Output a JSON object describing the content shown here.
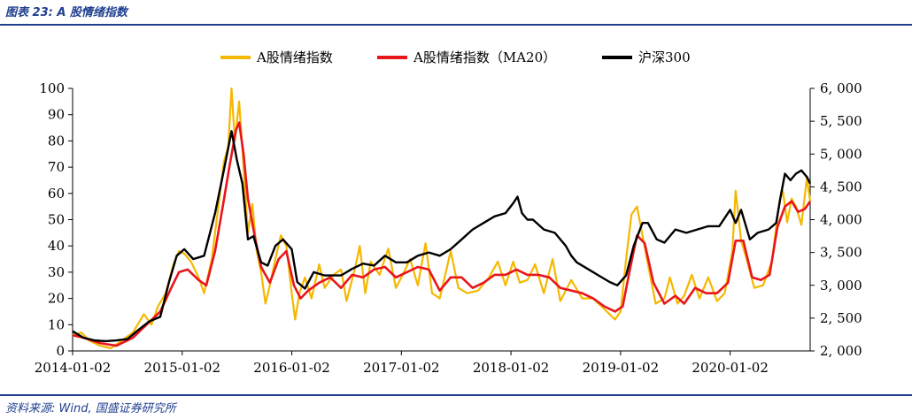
{
  "figure": {
    "title": "图表 23:  A 股情绪指数",
    "source": "资料来源:  Wind,  国盛证券研究所"
  },
  "chart_data": {
    "type": "line",
    "title": "图表 23:  A 股情绪指数",
    "x_ticks": [
      "2014-01-02",
      "2015-01-02",
      "2016-01-02",
      "2017-01-02",
      "2018-01-02",
      "2019-01-02",
      "2020-01-02"
    ],
    "x_range": [
      2014.0,
      2020.73
    ],
    "y_left": {
      "ticks": [
        "0",
        "10",
        "20",
        "30",
        "40",
        "50",
        "60",
        "70",
        "80",
        "90",
        "100"
      ],
      "range": [
        0,
        100
      ],
      "label": ""
    },
    "y_right": {
      "ticks": [
        "2, 000",
        "2, 500",
        "3, 000",
        "3, 500",
        "4, 000",
        "4, 500",
        "5, 000",
        "5, 500",
        "6, 000"
      ],
      "range": [
        2000,
        6000
      ],
      "label": ""
    },
    "legend": {
      "position": "top-center"
    },
    "grid": false,
    "series": [
      {
        "name": "A股情绪指数",
        "axis": "left",
        "color": "#f5b800",
        "points": [
          [
            2014.0,
            6
          ],
          [
            2014.08,
            7
          ],
          [
            2014.15,
            4
          ],
          [
            2014.25,
            2
          ],
          [
            2014.35,
            1
          ],
          [
            2014.45,
            4
          ],
          [
            2014.55,
            7
          ],
          [
            2014.65,
            14
          ],
          [
            2014.72,
            10
          ],
          [
            2014.78,
            17
          ],
          [
            2014.85,
            22
          ],
          [
            2014.92,
            33
          ],
          [
            2014.97,
            38
          ],
          [
            2015.02,
            37
          ],
          [
            2015.08,
            34
          ],
          [
            2015.15,
            28
          ],
          [
            2015.2,
            22
          ],
          [
            2015.27,
            35
          ],
          [
            2015.33,
            55
          ],
          [
            2015.38,
            72
          ],
          [
            2015.42,
            78
          ],
          [
            2015.45,
            100
          ],
          [
            2015.48,
            80
          ],
          [
            2015.52,
            95
          ],
          [
            2015.56,
            70
          ],
          [
            2015.6,
            45
          ],
          [
            2015.64,
            56
          ],
          [
            2015.68,
            38
          ],
          [
            2015.72,
            30
          ],
          [
            2015.76,
            18
          ],
          [
            2015.8,
            25
          ],
          [
            2015.85,
            35
          ],
          [
            2015.9,
            44
          ],
          [
            2015.95,
            40
          ],
          [
            2016.0,
            22
          ],
          [
            2016.03,
            12
          ],
          [
            2016.07,
            22
          ],
          [
            2016.12,
            28
          ],
          [
            2016.18,
            20
          ],
          [
            2016.25,
            33
          ],
          [
            2016.3,
            24
          ],
          [
            2016.38,
            29
          ],
          [
            2016.45,
            31
          ],
          [
            2016.5,
            19
          ],
          [
            2016.58,
            32
          ],
          [
            2016.62,
            40
          ],
          [
            2016.67,
            22
          ],
          [
            2016.72,
            34
          ],
          [
            2016.8,
            29
          ],
          [
            2016.88,
            39
          ],
          [
            2016.95,
            24
          ],
          [
            2017.0,
            28
          ],
          [
            2017.08,
            35
          ],
          [
            2017.15,
            25
          ],
          [
            2017.22,
            41
          ],
          [
            2017.28,
            22
          ],
          [
            2017.35,
            20
          ],
          [
            2017.45,
            38
          ],
          [
            2017.52,
            24
          ],
          [
            2017.6,
            22
          ],
          [
            2017.7,
            23
          ],
          [
            2017.8,
            28
          ],
          [
            2017.88,
            34
          ],
          [
            2017.95,
            25
          ],
          [
            2018.02,
            34
          ],
          [
            2018.08,
            26
          ],
          [
            2018.15,
            27
          ],
          [
            2018.22,
            33
          ],
          [
            2018.3,
            22
          ],
          [
            2018.38,
            35
          ],
          [
            2018.45,
            19
          ],
          [
            2018.55,
            27
          ],
          [
            2018.65,
            20
          ],
          [
            2018.75,
            20
          ],
          [
            2018.85,
            16
          ],
          [
            2018.95,
            12
          ],
          [
            2019.0,
            15
          ],
          [
            2019.05,
            35
          ],
          [
            2019.1,
            52
          ],
          [
            2019.15,
            55
          ],
          [
            2019.2,
            44
          ],
          [
            2019.25,
            33
          ],
          [
            2019.32,
            18
          ],
          [
            2019.4,
            20
          ],
          [
            2019.45,
            28
          ],
          [
            2019.52,
            18
          ],
          [
            2019.58,
            21
          ],
          [
            2019.65,
            29
          ],
          [
            2019.72,
            20
          ],
          [
            2019.8,
            28
          ],
          [
            2019.88,
            19
          ],
          [
            2019.95,
            22
          ],
          [
            2020.02,
            38
          ],
          [
            2020.05,
            61
          ],
          [
            2020.1,
            42
          ],
          [
            2020.15,
            35
          ],
          [
            2020.22,
            24
          ],
          [
            2020.3,
            25
          ],
          [
            2020.38,
            34
          ],
          [
            2020.45,
            57
          ],
          [
            2020.48,
            61
          ],
          [
            2020.52,
            49
          ],
          [
            2020.56,
            58
          ],
          [
            2020.6,
            55
          ],
          [
            2020.65,
            48
          ],
          [
            2020.7,
            66
          ],
          [
            2020.73,
            57
          ]
        ]
      },
      {
        "name": "A股情绪指数（MA20）",
        "axis": "left",
        "color": "#e8161b",
        "points": [
          [
            2014.0,
            6
          ],
          [
            2014.1,
            5
          ],
          [
            2014.25,
            3
          ],
          [
            2014.4,
            2
          ],
          [
            2014.55,
            5
          ],
          [
            2014.7,
            11
          ],
          [
            2014.8,
            15
          ],
          [
            2014.9,
            24
          ],
          [
            2014.97,
            30
          ],
          [
            2015.05,
            31
          ],
          [
            2015.15,
            27
          ],
          [
            2015.22,
            25
          ],
          [
            2015.3,
            38
          ],
          [
            2015.37,
            55
          ],
          [
            2015.43,
            70
          ],
          [
            2015.49,
            84
          ],
          [
            2015.52,
            87
          ],
          [
            2015.56,
            75
          ],
          [
            2015.6,
            58
          ],
          [
            2015.66,
            44
          ],
          [
            2015.72,
            32
          ],
          [
            2015.8,
            26
          ],
          [
            2015.88,
            35
          ],
          [
            2015.95,
            38
          ],
          [
            2016.02,
            25
          ],
          [
            2016.08,
            20
          ],
          [
            2016.15,
            23
          ],
          [
            2016.25,
            26
          ],
          [
            2016.35,
            28
          ],
          [
            2016.45,
            24
          ],
          [
            2016.55,
            29
          ],
          [
            2016.65,
            28
          ],
          [
            2016.75,
            31
          ],
          [
            2016.85,
            32
          ],
          [
            2016.95,
            28
          ],
          [
            2017.05,
            30
          ],
          [
            2017.15,
            32
          ],
          [
            2017.25,
            31
          ],
          [
            2017.35,
            23
          ],
          [
            2017.45,
            28
          ],
          [
            2017.55,
            28
          ],
          [
            2017.65,
            24
          ],
          [
            2017.75,
            26
          ],
          [
            2017.85,
            29
          ],
          [
            2017.95,
            29
          ],
          [
            2018.05,
            31
          ],
          [
            2018.15,
            29
          ],
          [
            2018.25,
            29
          ],
          [
            2018.35,
            28
          ],
          [
            2018.45,
            24
          ],
          [
            2018.55,
            23
          ],
          [
            2018.65,
            22
          ],
          [
            2018.75,
            20
          ],
          [
            2018.85,
            17
          ],
          [
            2018.95,
            15
          ],
          [
            2019.02,
            17
          ],
          [
            2019.08,
            30
          ],
          [
            2019.15,
            44
          ],
          [
            2019.22,
            41
          ],
          [
            2019.3,
            26
          ],
          [
            2019.4,
            18
          ],
          [
            2019.5,
            21
          ],
          [
            2019.58,
            18
          ],
          [
            2019.68,
            24
          ],
          [
            2019.78,
            22
          ],
          [
            2019.88,
            22
          ],
          [
            2019.98,
            26
          ],
          [
            2020.05,
            42
          ],
          [
            2020.12,
            42
          ],
          [
            2020.2,
            28
          ],
          [
            2020.28,
            27
          ],
          [
            2020.36,
            29
          ],
          [
            2020.43,
            47
          ],
          [
            2020.5,
            55
          ],
          [
            2020.56,
            57
          ],
          [
            2020.62,
            53
          ],
          [
            2020.68,
            54
          ],
          [
            2020.73,
            57
          ]
        ]
      },
      {
        "name": "沪深300",
        "axis": "right",
        "color": "#000000",
        "points": [
          [
            2014.0,
            2300
          ],
          [
            2014.1,
            2200
          ],
          [
            2014.2,
            2160
          ],
          [
            2014.3,
            2150
          ],
          [
            2014.4,
            2160
          ],
          [
            2014.5,
            2180
          ],
          [
            2014.6,
            2320
          ],
          [
            2014.7,
            2450
          ],
          [
            2014.8,
            2520
          ],
          [
            2014.88,
            3050
          ],
          [
            2014.95,
            3450
          ],
          [
            2015.02,
            3550
          ],
          [
            2015.1,
            3400
          ],
          [
            2015.2,
            3450
          ],
          [
            2015.3,
            4100
          ],
          [
            2015.38,
            4750
          ],
          [
            2015.45,
            5350
          ],
          [
            2015.5,
            4900
          ],
          [
            2015.55,
            4550
          ],
          [
            2015.6,
            3700
          ],
          [
            2015.65,
            3750
          ],
          [
            2015.72,
            3350
          ],
          [
            2015.78,
            3300
          ],
          [
            2015.85,
            3600
          ],
          [
            2015.92,
            3700
          ],
          [
            2016.0,
            3550
          ],
          [
            2016.05,
            3050
          ],
          [
            2016.12,
            2950
          ],
          [
            2016.2,
            3200
          ],
          [
            2016.3,
            3150
          ],
          [
            2016.45,
            3150
          ],
          [
            2016.55,
            3250
          ],
          [
            2016.65,
            3330
          ],
          [
            2016.75,
            3300
          ],
          [
            2016.85,
            3450
          ],
          [
            2016.95,
            3350
          ],
          [
            2017.05,
            3350
          ],
          [
            2017.15,
            3450
          ],
          [
            2017.25,
            3500
          ],
          [
            2017.35,
            3450
          ],
          [
            2017.45,
            3550
          ],
          [
            2017.55,
            3700
          ],
          [
            2017.65,
            3850
          ],
          [
            2017.75,
            3950
          ],
          [
            2017.85,
            4050
          ],
          [
            2017.95,
            4100
          ],
          [
            2018.02,
            4250
          ],
          [
            2018.06,
            4350
          ],
          [
            2018.1,
            4100
          ],
          [
            2018.15,
            4000
          ],
          [
            2018.2,
            4000
          ],
          [
            2018.3,
            3850
          ],
          [
            2018.4,
            3800
          ],
          [
            2018.5,
            3600
          ],
          [
            2018.55,
            3450
          ],
          [
            2018.6,
            3350
          ],
          [
            2018.7,
            3250
          ],
          [
            2018.8,
            3150
          ],
          [
            2018.9,
            3050
          ],
          [
            2018.97,
            3000
          ],
          [
            2019.05,
            3150
          ],
          [
            2019.12,
            3600
          ],
          [
            2019.2,
            3950
          ],
          [
            2019.25,
            3950
          ],
          [
            2019.33,
            3700
          ],
          [
            2019.4,
            3650
          ],
          [
            2019.5,
            3850
          ],
          [
            2019.6,
            3800
          ],
          [
            2019.7,
            3850
          ],
          [
            2019.8,
            3900
          ],
          [
            2019.9,
            3900
          ],
          [
            2020.0,
            4150
          ],
          [
            2020.05,
            3950
          ],
          [
            2020.1,
            4150
          ],
          [
            2020.18,
            3700
          ],
          [
            2020.25,
            3800
          ],
          [
            2020.35,
            3850
          ],
          [
            2020.42,
            3950
          ],
          [
            2020.46,
            4350
          ],
          [
            2020.5,
            4700
          ],
          [
            2020.55,
            4600
          ],
          [
            2020.6,
            4700
          ],
          [
            2020.65,
            4750
          ],
          [
            2020.7,
            4650
          ],
          [
            2020.73,
            4550
          ]
        ]
      }
    ]
  }
}
